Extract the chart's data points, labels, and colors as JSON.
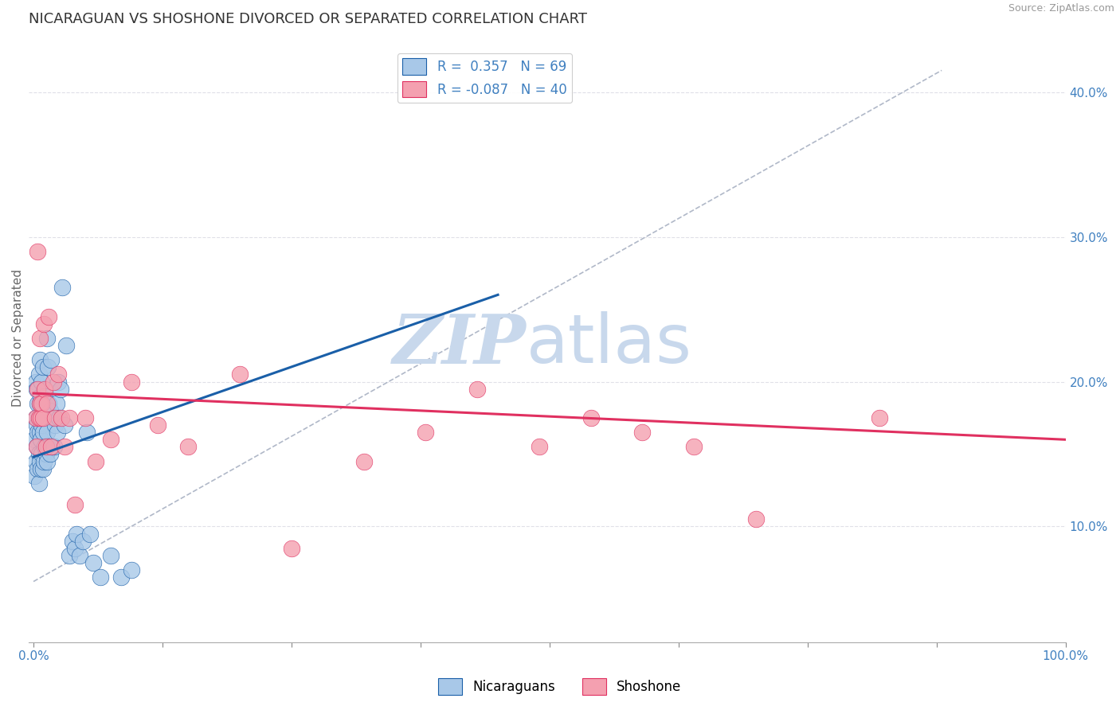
{
  "title": "NICARAGUAN VS SHOSHONE DIVORCED OR SEPARATED CORRELATION CHART",
  "source": "Source: ZipAtlas.com",
  "ylabel": "Divorced or Separated",
  "right_yticks": [
    "10.0%",
    "20.0%",
    "30.0%",
    "40.0%"
  ],
  "right_ytick_vals": [
    0.1,
    0.2,
    0.3,
    0.4
  ],
  "legend_blue_r": "0.357",
  "legend_blue_n": "69",
  "legend_pink_r": "-0.087",
  "legend_pink_n": "40",
  "blue_scatter_color": "#a8c8e8",
  "pink_scatter_color": "#f4a0b0",
  "blue_line_color": "#1a5fa8",
  "pink_line_color": "#e03060",
  "dashed_line_color": "#b0b8c8",
  "background_color": "#ffffff",
  "grid_color": "#e0e0e8",
  "watermark_color": "#c8d8ec",
  "title_fontsize": 13,
  "axis_fontsize": 11,
  "tick_fontsize": 11,
  "xlim": [
    -0.005,
    1.0
  ],
  "ylim": [
    0.02,
    0.44
  ],
  "blue_scatter_x": [
    0.001,
    0.001,
    0.002,
    0.002,
    0.002,
    0.003,
    0.003,
    0.003,
    0.004,
    0.004,
    0.004,
    0.005,
    0.005,
    0.005,
    0.005,
    0.006,
    0.006,
    0.006,
    0.006,
    0.007,
    0.007,
    0.007,
    0.008,
    0.008,
    0.008,
    0.009,
    0.009,
    0.009,
    0.01,
    0.01,
    0.011,
    0.011,
    0.012,
    0.012,
    0.013,
    0.013,
    0.013,
    0.014,
    0.014,
    0.015,
    0.015,
    0.016,
    0.016,
    0.017,
    0.018,
    0.019,
    0.02,
    0.021,
    0.022,
    0.023,
    0.024,
    0.025,
    0.026,
    0.028,
    0.03,
    0.032,
    0.035,
    0.038,
    0.04,
    0.042,
    0.045,
    0.048,
    0.052,
    0.055,
    0.058,
    0.065,
    0.075,
    0.085,
    0.095
  ],
  "blue_scatter_y": [
    0.135,
    0.16,
    0.145,
    0.175,
    0.2,
    0.155,
    0.17,
    0.195,
    0.14,
    0.165,
    0.185,
    0.13,
    0.15,
    0.175,
    0.205,
    0.145,
    0.165,
    0.185,
    0.215,
    0.14,
    0.16,
    0.19,
    0.15,
    0.17,
    0.2,
    0.14,
    0.165,
    0.21,
    0.145,
    0.175,
    0.155,
    0.19,
    0.15,
    0.185,
    0.145,
    0.165,
    0.23,
    0.155,
    0.21,
    0.155,
    0.185,
    0.15,
    0.18,
    0.215,
    0.155,
    0.175,
    0.155,
    0.17,
    0.185,
    0.165,
    0.2,
    0.175,
    0.195,
    0.265,
    0.17,
    0.225,
    0.08,
    0.09,
    0.085,
    0.095,
    0.08,
    0.09,
    0.165,
    0.095,
    0.075,
    0.065,
    0.08,
    0.065,
    0.07
  ],
  "pink_scatter_x": [
    0.002,
    0.003,
    0.004,
    0.004,
    0.005,
    0.006,
    0.006,
    0.007,
    0.008,
    0.009,
    0.01,
    0.011,
    0.012,
    0.013,
    0.015,
    0.017,
    0.019,
    0.021,
    0.024,
    0.027,
    0.03,
    0.035,
    0.04,
    0.05,
    0.06,
    0.075,
    0.095,
    0.12,
    0.15,
    0.2,
    0.25,
    0.32,
    0.38,
    0.43,
    0.49,
    0.54,
    0.59,
    0.64,
    0.7,
    0.82
  ],
  "pink_scatter_y": [
    0.175,
    0.155,
    0.195,
    0.29,
    0.175,
    0.185,
    0.23,
    0.175,
    0.185,
    0.175,
    0.24,
    0.195,
    0.155,
    0.185,
    0.245,
    0.155,
    0.2,
    0.175,
    0.205,
    0.175,
    0.155,
    0.175,
    0.115,
    0.175,
    0.145,
    0.16,
    0.2,
    0.17,
    0.155,
    0.205,
    0.085,
    0.145,
    0.165,
    0.195,
    0.155,
    0.175,
    0.165,
    0.155,
    0.105,
    0.175
  ],
  "blue_line_x": [
    0.0,
    0.45
  ],
  "blue_line_y": [
    0.148,
    0.26
  ],
  "pink_line_x": [
    0.0,
    1.0
  ],
  "pink_line_y": [
    0.192,
    0.16
  ],
  "dashed_line_x": [
    0.0,
    0.88
  ],
  "dashed_line_y": [
    0.062,
    0.415
  ]
}
